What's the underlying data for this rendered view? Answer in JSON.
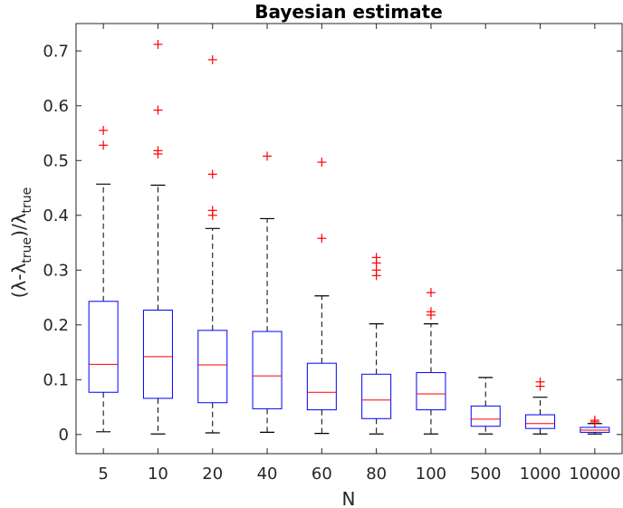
{
  "chart_data": {
    "type": "boxplot",
    "title": "Bayesian estimate",
    "xlabel": "N",
    "ylabel": "(λ-λ_true)/λ_true",
    "ylabel_parts": {
      "main1": "(λ-λ",
      "sub1": "true",
      "main2": ")/λ",
      "sub2": "true"
    },
    "categories": [
      "5",
      "10",
      "20",
      "40",
      "60",
      "80",
      "100",
      "500",
      "1000",
      "10000"
    ],
    "ylim": [
      -0.035,
      0.75
    ],
    "yticks": [
      0,
      0.1,
      0.2,
      0.3,
      0.4,
      0.5,
      0.6,
      0.7
    ],
    "ytick_labels": [
      "0",
      "0.1",
      "0.2",
      "0.3",
      "0.4",
      "0.5",
      "0.6",
      "0.7"
    ],
    "grid": false,
    "colors": {
      "box": "#0000ff",
      "median": "#ff0000",
      "whisker": "#000000",
      "outlier": "#ff0000",
      "axis": "#262626"
    },
    "boxes": [
      {
        "category": "5",
        "q1": 0.077,
        "median": 0.128,
        "q3": 0.243,
        "whisker_low": 0.005,
        "whisker_high": 0.457,
        "outliers": [
          0.528,
          0.555
        ]
      },
      {
        "category": "10",
        "q1": 0.066,
        "median": 0.142,
        "q3": 0.227,
        "whisker_low": 0.001,
        "whisker_high": 0.455,
        "outliers": [
          0.512,
          0.518,
          0.592,
          0.712
        ]
      },
      {
        "category": "20",
        "q1": 0.058,
        "median": 0.127,
        "q3": 0.19,
        "whisker_low": 0.003,
        "whisker_high": 0.376,
        "outliers": [
          0.4,
          0.409,
          0.475,
          0.684
        ]
      },
      {
        "category": "40",
        "q1": 0.047,
        "median": 0.107,
        "q3": 0.188,
        "whisker_low": 0.004,
        "whisker_high": 0.394,
        "outliers": [
          0.508
        ]
      },
      {
        "category": "60",
        "q1": 0.045,
        "median": 0.077,
        "q3": 0.13,
        "whisker_low": 0.002,
        "whisker_high": 0.253,
        "outliers": [
          0.358,
          0.497
        ]
      },
      {
        "category": "80",
        "q1": 0.029,
        "median": 0.063,
        "q3": 0.11,
        "whisker_low": 0.001,
        "whisker_high": 0.202,
        "outliers": [
          0.29,
          0.3,
          0.313,
          0.323
        ]
      },
      {
        "category": "100",
        "q1": 0.045,
        "median": 0.074,
        "q3": 0.113,
        "whisker_low": 0.001,
        "whisker_high": 0.202,
        "outliers": [
          0.218,
          0.224,
          0.259
        ]
      },
      {
        "category": "500",
        "q1": 0.015,
        "median": 0.028,
        "q3": 0.052,
        "whisker_low": 0.001,
        "whisker_high": 0.104,
        "outliers": []
      },
      {
        "category": "1000",
        "q1": 0.011,
        "median": 0.02,
        "q3": 0.036,
        "whisker_low": 0.001,
        "whisker_high": 0.068,
        "outliers": [
          0.088,
          0.096
        ]
      },
      {
        "category": "10000",
        "q1": 0.004,
        "median": 0.008,
        "q3": 0.013,
        "whisker_low": 0.001,
        "whisker_high": 0.02,
        "outliers": [
          0.023,
          0.026
        ]
      }
    ]
  }
}
